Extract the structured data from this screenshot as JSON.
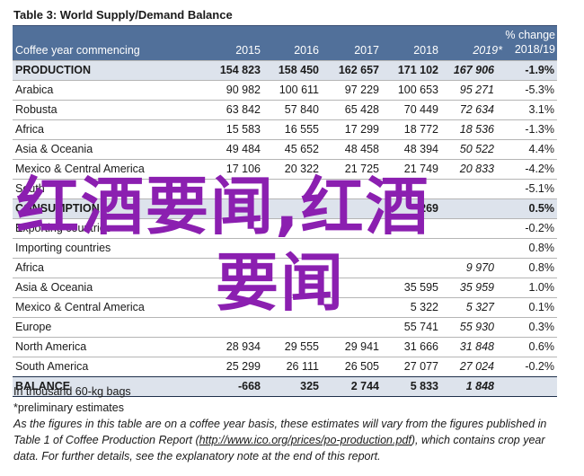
{
  "title": "Table 3: World Supply/Demand Balance",
  "header": {
    "label": "Coffee year commencing",
    "years": [
      "2015",
      "2016",
      "2017",
      "2018",
      "2019*"
    ],
    "pct_line1": "% change",
    "pct_line2": "2018/19"
  },
  "rows": [
    {
      "label": "PRODUCTION",
      "v": [
        "154 823",
        "158 450",
        "162 657",
        "171 102",
        "167 906"
      ],
      "pct": "-1.9%",
      "bold": true,
      "shade": true
    },
    {
      "label": "Arabica",
      "v": [
        "90 982",
        "100 611",
        "97 229",
        "100 653",
        "95 271"
      ],
      "pct": "-5.3%"
    },
    {
      "label": "Robusta",
      "v": [
        "63 842",
        "57 840",
        "65 428",
        "70 449",
        "72 634"
      ],
      "pct": "3.1%"
    },
    {
      "label": "Africa",
      "v": [
        "15 583",
        "16 555",
        "17 299",
        "18 772",
        "18 536"
      ],
      "pct": "-1.3%"
    },
    {
      "label": "Asia & Oceania",
      "v": [
        "49 484",
        "45 652",
        "48 458",
        "48 394",
        "50 522"
      ],
      "pct": "4.4%"
    },
    {
      "label": "Mexico & Central America",
      "v": [
        "17 106",
        "20 322",
        "21 725",
        "21 749",
        "20 833"
      ],
      "pct": "-4.2%"
    },
    {
      "label": "South",
      "v": [
        "",
        "",
        "",
        "",
        ""
      ],
      "pct": "-5.1%"
    },
    {
      "label": "CONSUMPTION",
      "v": [
        "",
        "",
        "",
        "269",
        ""
      ],
      "pct": "0.5%",
      "bold": true,
      "shade": true
    },
    {
      "label": "Exporting countries",
      "v": [
        "",
        "",
        "",
        "",
        ""
      ],
      "pct": "-0.2%"
    },
    {
      "label": "Importing countries",
      "v": [
        "",
        "",
        "",
        "",
        ""
      ],
      "pct": "0.8%"
    },
    {
      "label": "Africa",
      "v": [
        "",
        "",
        "",
        "",
        "9 970"
      ],
      "pct": "0.8%"
    },
    {
      "label": "Asia & Oceania",
      "v": [
        "",
        "",
        "",
        "35 595",
        "35 959"
      ],
      "pct": "1.0%"
    },
    {
      "label": "Mexico & Central America",
      "v": [
        "",
        "",
        "",
        "5 322",
        "5 327"
      ],
      "pct": "0.1%"
    },
    {
      "label": "Europe",
      "v": [
        "",
        "",
        "",
        "55 741",
        "55 930"
      ],
      "pct": "0.3%"
    },
    {
      "label": "North America",
      "v": [
        "28 934",
        "29 555",
        "29 941",
        "31 666",
        "31 848"
      ],
      "pct": "0.6%"
    },
    {
      "label": "South America",
      "v": [
        "25 299",
        "26 111",
        "26 505",
        "27 077",
        "27 024"
      ],
      "pct": "-0.2%"
    },
    {
      "label": "BALANCE",
      "v": [
        "-668",
        "325",
        "2 744",
        "5 833",
        "1 848"
      ],
      "pct": "",
      "bold": true,
      "shade": true,
      "balance": true
    }
  ],
  "notes": {
    "line1": "In thousand 60-kg bags",
    "line2": "*preliminary estimates",
    "line3": "As the figures in this table are on a coffee year basis, these estimates will vary from the figures published in",
    "line4a": "Table 1 of Coffee Production Report (",
    "line4link": "http://www.ico.org/prices/po-production.pdf",
    "line4b": "), which contains crop year",
    "line5": "data. For further details, see the explanatory note at the end of this report."
  },
  "watermark": {
    "line1": "红酒要闻,红酒",
    "line2": "要闻"
  }
}
